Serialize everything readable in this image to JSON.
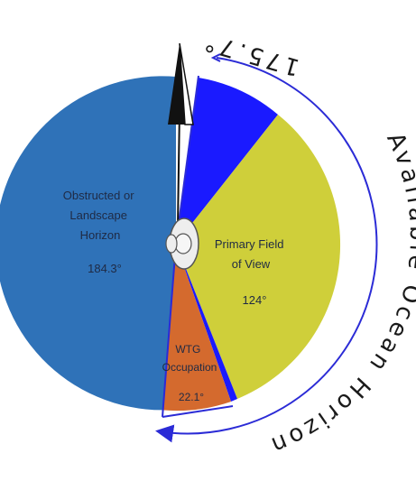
{
  "diagram": {
    "colors": {
      "obstructed": "#2f72b8",
      "primary": "#cfcf3a",
      "wtg": "#d46a2e",
      "ocean_wedge": "#1a1aff",
      "arc": "#2b2bd6",
      "observer": "#eeeeee"
    },
    "segments": {
      "obstructed": {
        "label_lines": [
          "Obstructed or",
          "Landscape",
          "Horizon"
        ],
        "value": "184.3°"
      },
      "primary": {
        "label_lines": [
          "Primary Field",
          "of View"
        ],
        "value": "124°"
      },
      "wtg": {
        "label_lines": [
          "WTG",
          "Occupation"
        ],
        "value": "22.1°"
      }
    },
    "available_ocean": {
      "value_label": "175.7°",
      "title": "Available Ocean Horizon"
    },
    "icons": {
      "north": "north-arrow-icon",
      "observer": "observer-figure-icon"
    }
  }
}
